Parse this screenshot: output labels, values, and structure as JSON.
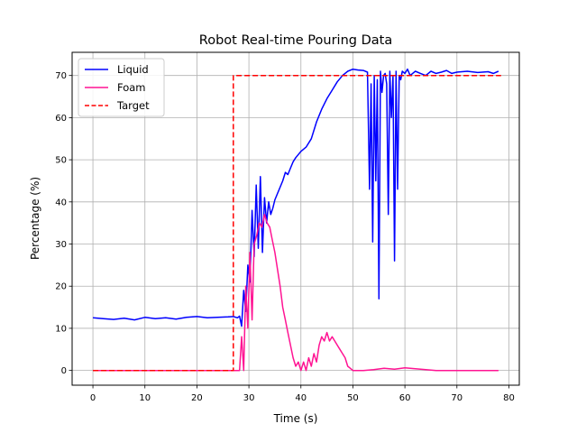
{
  "chart_data": {
    "type": "line",
    "title": "Robot Real-time Pouring Data",
    "xlabel": "Time (s)",
    "ylabel": "Percentage (%)",
    "xlim": [
      -4,
      82
    ],
    "ylim": [
      -3.5,
      75.5
    ],
    "xticks": [
      0,
      10,
      20,
      30,
      40,
      50,
      60,
      70,
      80
    ],
    "yticks": [
      0,
      10,
      20,
      30,
      40,
      50,
      60,
      70
    ],
    "grid": true,
    "legend_position": "top-left",
    "series": [
      {
        "name": "Liquid",
        "color": "#0000ff",
        "style": "solid",
        "x": [
          0,
          2,
          4,
          6,
          8,
          10,
          12,
          14,
          16,
          18,
          20,
          22,
          24,
          26,
          27,
          27.8,
          28.2,
          28.6,
          29.0,
          29.4,
          29.8,
          30.2,
          30.6,
          31.0,
          31.4,
          31.8,
          32.2,
          32.6,
          33.0,
          33.4,
          33.8,
          34.2,
          34.6,
          35.0,
          35.5,
          36.0,
          36.5,
          37.0,
          37.5,
          38.0,
          38.5,
          39.0,
          40.0,
          41.0,
          42.0,
          43.0,
          44.0,
          45.0,
          46.0,
          47.0,
          48.0,
          49.0,
          50.0,
          51.0,
          52.0,
          52.8,
          53.2,
          53.5,
          53.8,
          54.1,
          54.4,
          54.7,
          55.0,
          55.3,
          55.6,
          55.9,
          56.2,
          56.5,
          56.8,
          57.1,
          57.4,
          57.7,
          58.0,
          58.3,
          58.6,
          58.9,
          59.2,
          59.5,
          60.0,
          60.5,
          61.0,
          62.0,
          63.0,
          64.0,
          65.0,
          66.0,
          67.0,
          68.0,
          69.0,
          70.0,
          72.0,
          74.0,
          76.0,
          77.0,
          78.0
        ],
        "y": [
          12.5,
          12.3,
          12.1,
          12.4,
          12.0,
          12.6,
          12.3,
          12.5,
          12.2,
          12.6,
          12.8,
          12.5,
          12.6,
          12.7,
          12.8,
          12.5,
          12.9,
          10.5,
          19.0,
          14.0,
          25.0,
          21.0,
          38.0,
          27.0,
          44.0,
          29.0,
          46.0,
          28.0,
          41.0,
          35.0,
          40.0,
          37.0,
          38.5,
          40.5,
          42.0,
          43.5,
          45.0,
          47.0,
          46.5,
          48.0,
          49.5,
          50.5,
          52.0,
          53.0,
          55.0,
          59.0,
          62.0,
          64.5,
          66.5,
          68.5,
          70.0,
          71.0,
          71.5,
          71.3,
          71.2,
          70.8,
          43.0,
          68.0,
          30.5,
          70.0,
          45.0,
          69.0,
          17.0,
          71.0,
          66.0,
          70.0,
          70.5,
          68.0,
          37.0,
          71.0,
          60.0,
          70.0,
          26.0,
          71.0,
          43.0,
          70.0,
          69.0,
          71.0,
          70.5,
          71.5,
          70.0,
          71.0,
          70.5,
          70.0,
          71.0,
          70.5,
          70.8,
          71.2,
          70.5,
          70.8,
          71.0,
          70.7,
          70.9,
          70.5,
          71.0
        ]
      },
      {
        "name": "Foam",
        "color": "#ff1493",
        "style": "solid",
        "x": [
          0,
          10,
          20,
          27,
          28.2,
          28.6,
          29.0,
          29.4,
          29.8,
          30.2,
          30.6,
          31.0,
          31.5,
          32.0,
          32.5,
          33.0,
          33.5,
          34.0,
          34.5,
          35.0,
          35.5,
          36.0,
          36.5,
          37.0,
          37.5,
          38.0,
          38.5,
          39.0,
          39.5,
          40.0,
          40.5,
          41.0,
          41.5,
          42.0,
          42.5,
          43.0,
          43.5,
          44.0,
          44.5,
          45.0,
          45.5,
          46.0,
          46.5,
          47.0,
          47.5,
          48.0,
          48.5,
          49.0,
          49.5,
          50.0,
          52.0,
          54.0,
          56.0,
          58.0,
          60.0,
          62.0,
          64.0,
          66.0,
          70.0,
          74.0,
          78.0
        ],
        "y": [
          0,
          0,
          0,
          0,
          0,
          8,
          0,
          20,
          10,
          28,
          12,
          30,
          32,
          35,
          34,
          37,
          35,
          34,
          31,
          28,
          24,
          20,
          15,
          12,
          9,
          6,
          3,
          1,
          2,
          0,
          2,
          0,
          3,
          1,
          4,
          2,
          6,
          8,
          7,
          9,
          7,
          8,
          7,
          6,
          5,
          4,
          3,
          1,
          0.5,
          0,
          0,
          0.2,
          0.5,
          0.3,
          0.6,
          0.4,
          0.2,
          0,
          0,
          0,
          0
        ]
      },
      {
        "name": "Target",
        "color": "#ff0000",
        "style": "dashed",
        "x": [
          0,
          27,
          27,
          78.5
        ],
        "y": [
          0,
          0,
          70,
          70
        ]
      }
    ]
  }
}
